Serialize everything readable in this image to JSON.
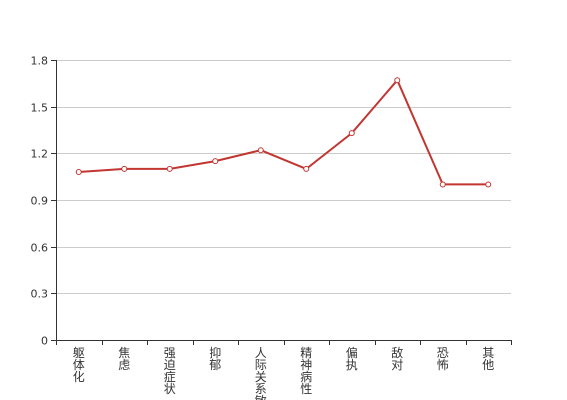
{
  "chart_data": {
    "type": "line",
    "title": "",
    "xlabel": "",
    "ylabel": "",
    "categories": [
      "躯体化",
      "焦虑",
      "强迫症状",
      "抑郁",
      "人际关系敏感",
      "精神病性",
      "偏执",
      "敌对",
      "恐怖",
      "其他"
    ],
    "series": [
      {
        "values": [
          1.08,
          1.1,
          1.1,
          1.15,
          1.22,
          1.1,
          1.33,
          1.67,
          1.0,
          1.0
        ]
      }
    ],
    "ylim": [
      0,
      1.8
    ],
    "yticks": [
      "0",
      "0.3",
      "0.6",
      "0.9",
      "1.2",
      "1.5",
      "1.8"
    ],
    "grid": true,
    "legend": "none",
    "colors": {
      "line": "#c23531",
      "grid": "#cccccc",
      "axis": "#333333",
      "marker_fill": "#ffffff"
    }
  }
}
